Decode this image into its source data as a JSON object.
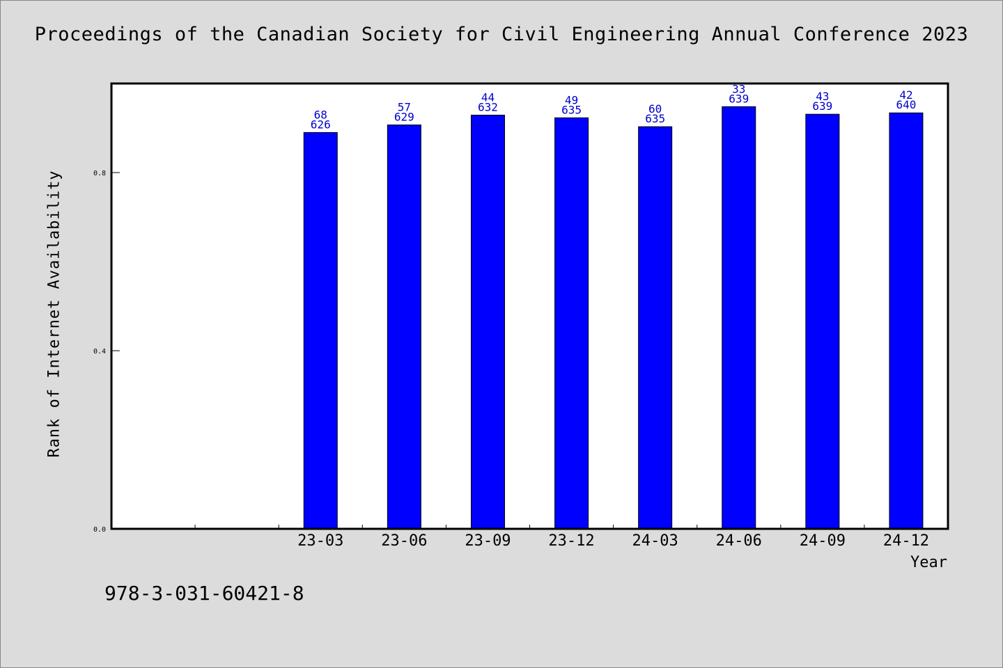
{
  "page": {
    "title": "Proceedings of the Canadian Society for Civil Engineering Annual Conference 2023",
    "isbn": "978-3-031-60421-8"
  },
  "chart_data": {
    "type": "bar",
    "title": "Proceedings of the Canadian Society for Civil Engineering Annual Conference 2023",
    "xlabel": "Year",
    "ylabel": "Rank of Internet Availability",
    "ylim": [
      0.0,
      1.0
    ],
    "yticks": [
      0.0,
      0.4,
      0.8
    ],
    "ytick_labels": [
      "0.0",
      "0.4",
      "0.8"
    ],
    "grid": false,
    "slots": 10,
    "categories": [
      "23-03",
      "23-06",
      "23-09",
      "23-12",
      "24-03",
      "24-06",
      "24-09",
      "24-12"
    ],
    "values": [
      0.89,
      0.907,
      0.929,
      0.923,
      0.903,
      0.948,
      0.931,
      0.934
    ],
    "label_top": [
      "68",
      "57",
      "44",
      "49",
      "60",
      "33",
      "43",
      "42"
    ],
    "label_bottom": [
      "626",
      "629",
      "632",
      "635",
      "635",
      "639",
      "639",
      "640"
    ],
    "bar_color": "#0000ff",
    "label_color": "#0000cc"
  }
}
